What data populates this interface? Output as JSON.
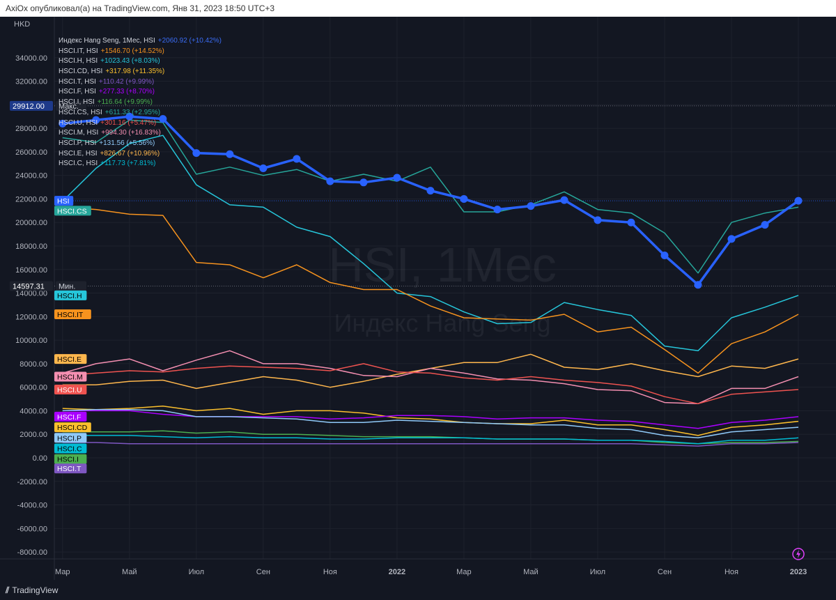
{
  "header": {
    "publisher_line": "AxiOx опубликовал(а) на TradingView.com, Янв 31, 2023 18:50 UTC+3"
  },
  "chart": {
    "currency": "HKD",
    "watermark_symbol": "HSI, 1Мес",
    "watermark_name": "Индекс Hang Seng",
    "max_label": "Макс.",
    "min_label": "Мин.",
    "max_value_text": "29912.00",
    "min_value_text": "14597.31",
    "footer_brand": "TradingView",
    "legend": [
      {
        "name": "Индекс Hang Seng, 1Мес, HSI",
        "change": "+2060.92 (+10.42%)",
        "color": "#3a6cf4"
      },
      {
        "name": "HSCI.IT, HSI",
        "change": "+1546.70 (+14.52%)",
        "color": "#f7931e"
      },
      {
        "name": "HSCI.H, HSI",
        "change": "+1023.43 (+8.03%)",
        "color": "#26c6da"
      },
      {
        "name": "HSCI.CD, HSI",
        "change": "+317.98 (+11.35%)",
        "color": "#fbc02d"
      },
      {
        "name": "HSCI.T, HSI",
        "change": "+110.42 (+9.99%)",
        "color": "#7e57c2"
      },
      {
        "name": "HSCI.F, HSI",
        "change": "+277.33 (+8.70%)",
        "color": "#aa00ff"
      },
      {
        "name": "HSCI.I, HSI",
        "change": "+116.64 (+9.99%)",
        "color": "#4caf50"
      },
      {
        "name": "HSCI.CS, HSI",
        "change": "+611.33 (+2.95%)",
        "color": "#26a69a"
      },
      {
        "name": "HSCI.U, HSI",
        "change": "+301.16 (+5.47%)",
        "color": "#ef5350"
      },
      {
        "name": "HSCI.M, HSI",
        "change": "+994.30 (+16.83%)",
        "color": "#f48fb1"
      },
      {
        "name": "HSCI.P, HSI",
        "change": "+131.56 (+5.56%)",
        "color": "#90caf9"
      },
      {
        "name": "HSCI.E, HSI",
        "change": "+826.67 (+10.96%)",
        "color": "#ffb74d"
      },
      {
        "name": "HSCI.C, HSI",
        "change": "+117.73 (+7.81%)",
        "color": "#00bcd4"
      }
    ]
  },
  "chart_data": {
    "type": "line",
    "title": "Индекс Hang Seng, 1Мес, HSI",
    "ylabel": "HKD",
    "ylim": [
      -9000,
      36000
    ],
    "yticks": [
      -8000,
      -6000,
      -4000,
      -2000,
      0,
      2000,
      4000,
      6000,
      8000,
      10000,
      12000,
      14000,
      16000,
      18000,
      20000,
      22000,
      24000,
      26000,
      28000,
      30000,
      32000,
      34000
    ],
    "x_index_range": [
      -0.1,
      22.0
    ],
    "xticks": [
      {
        "i": 0,
        "label": "Мар"
      },
      {
        "i": 2,
        "label": "Май"
      },
      {
        "i": 4,
        "label": "Июл"
      },
      {
        "i": 6,
        "label": "Сен"
      },
      {
        "i": 8,
        "label": "Ноя"
      },
      {
        "i": 10,
        "label": "2022",
        "bold": true
      },
      {
        "i": 12,
        "label": "Мар"
      },
      {
        "i": 14,
        "label": "Май"
      },
      {
        "i": 16,
        "label": "Июл"
      },
      {
        "i": 18,
        "label": "Сен"
      },
      {
        "i": 20,
        "label": "Ноя"
      },
      {
        "i": 22,
        "label": "2023",
        "bold": true
      }
    ],
    "x": [
      "2021-03",
      "2021-04",
      "2021-05",
      "2021-06",
      "2021-07",
      "2021-08",
      "2021-09",
      "2021-10",
      "2021-11",
      "2021-12",
      "2022-01",
      "2022-02",
      "2022-03",
      "2022-04",
      "2022-05",
      "2022-06",
      "2022-07",
      "2022-08",
      "2022-09",
      "2022-10",
      "2022-11",
      "2022-12",
      "2023-01"
    ],
    "hlines": [
      {
        "value": 29912,
        "label": "Макс."
      },
      {
        "value": 14597.31,
        "label": "Мин."
      },
      {
        "value": 21842,
        "label": "HSI"
      }
    ],
    "series": [
      {
        "name": "HSCI.CS",
        "color": "#26a69a",
        "values": [
          27200,
          26800,
          28700,
          28500,
          24100,
          24700,
          24000,
          24500,
          23500,
          24100,
          23500,
          24700,
          20900,
          20900,
          21500,
          22600,
          21100,
          20800,
          19100,
          15700,
          20000,
          20800,
          21300
        ]
      },
      {
        "name": "HSCI.H",
        "color": "#26c6da",
        "values": [
          21800,
          24600,
          26700,
          27400,
          23200,
          21500,
          21300,
          19600,
          18800,
          16500,
          14000,
          13700,
          12400,
          11400,
          11500,
          13200,
          12600,
          12100,
          9500,
          9100,
          11900,
          12800,
          13800
        ]
      },
      {
        "name": "HSCI.IT",
        "color": "#f7931e",
        "values": [
          21300,
          21100,
          20700,
          20600,
          16600,
          16400,
          15300,
          16400,
          14900,
          14300,
          14300,
          12900,
          11900,
          11800,
          11700,
          12200,
          10700,
          11100,
          9200,
          7200,
          9700,
          10700,
          12200
        ]
      },
      {
        "name": "HSCI.E",
        "color": "#ffb74d",
        "values": [
          6200,
          6200,
          6500,
          6600,
          5900,
          6400,
          6900,
          6600,
          6000,
          6500,
          7100,
          7600,
          8100,
          8100,
          8800,
          7700,
          7500,
          8000,
          7400,
          6900,
          7800,
          7600,
          8400
        ]
      },
      {
        "name": "HSCI.M",
        "color": "#f48fb1",
        "values": [
          7200,
          8000,
          8400,
          7400,
          8300,
          9100,
          8000,
          8000,
          7600,
          7000,
          6900,
          7600,
          7200,
          6700,
          6600,
          6300,
          5800,
          5700,
          4700,
          4600,
          5900,
          5900,
          6900
        ]
      },
      {
        "name": "HSCI.U",
        "color": "#ef5350",
        "values": [
          7000,
          7200,
          7400,
          7300,
          7600,
          7800,
          7700,
          7600,
          7400,
          8000,
          7300,
          7200,
          6800,
          6600,
          6900,
          6600,
          6400,
          6100,
          5200,
          4600,
          5400,
          5600,
          5800
        ]
      },
      {
        "name": "HSCI.CD",
        "color": "#fbc02d",
        "values": [
          4200,
          4100,
          4200,
          4400,
          4000,
          4200,
          3700,
          4000,
          4000,
          3800,
          3400,
          3300,
          3000,
          2900,
          2900,
          3200,
          2800,
          2800,
          2400,
          1900,
          2600,
          2800,
          3100
        ]
      },
      {
        "name": "HSCI.F",
        "color": "#aa00ff",
        "values": [
          4000,
          4000,
          4000,
          3700,
          3500,
          3500,
          3500,
          3500,
          3300,
          3400,
          3600,
          3600,
          3500,
          3300,
          3400,
          3400,
          3200,
          3100,
          2800,
          2500,
          3000,
          3200,
          3500
        ]
      },
      {
        "name": "HSCI.P",
        "color": "#90caf9",
        "values": [
          4000,
          4100,
          4100,
          4000,
          3500,
          3500,
          3400,
          3300,
          3000,
          3000,
          3200,
          3100,
          3000,
          2900,
          2800,
          2800,
          2500,
          2400,
          1900,
          1700,
          2200,
          2400,
          2600
        ]
      },
      {
        "name": "HSCI.I",
        "color": "#4caf50",
        "values": [
          2200,
          2200,
          2200,
          2300,
          2100,
          2200,
          2000,
          2000,
          1900,
          1800,
          1800,
          1800,
          1700,
          1600,
          1600,
          1600,
          1500,
          1500,
          1300,
          1200,
          1300,
          1300,
          1400
        ]
      },
      {
        "name": "HSCI.C",
        "color": "#00bcd4",
        "values": [
          1900,
          1900,
          1900,
          1800,
          1700,
          1800,
          1700,
          1700,
          1600,
          1600,
          1700,
          1700,
          1700,
          1600,
          1600,
          1600,
          1500,
          1500,
          1400,
          1200,
          1500,
          1500,
          1700
        ]
      },
      {
        "name": "HSCI.T",
        "color": "#7e57c2",
        "values": [
          1300,
          1300,
          1200,
          1200,
          1200,
          1200,
          1200,
          1200,
          1200,
          1200,
          1200,
          1200,
          1200,
          1200,
          1200,
          1200,
          1200,
          1200,
          1100,
          1000,
          1200,
          1200,
          1300
        ]
      },
      {
        "name": "HSI",
        "color": "#2962ff",
        "markers": true,
        "values": [
          28400,
          28700,
          29000,
          28800,
          25900,
          25800,
          24600,
          25400,
          23500,
          23400,
          23800,
          22700,
          22000,
          21100,
          21400,
          21900,
          20200,
          20000,
          17200,
          14700,
          18600,
          19800,
          21842
        ]
      }
    ],
    "tags": [
      {
        "name": "HSI",
        "value": 21842,
        "color": "#2962ff",
        "text_color": "#ffffff"
      },
      {
        "name": "HSCI.CS",
        "value": 21000,
        "color": "#26a69a",
        "text_color": "#ffffff"
      },
      {
        "name": "HSCI.H",
        "value": 13800,
        "color": "#26c6da",
        "text_color": "#000000"
      },
      {
        "name": "HSCI.IT",
        "value": 12200,
        "color": "#f7931e",
        "text_color": "#000000"
      },
      {
        "name": "HSCI.E",
        "value": 8400,
        "color": "#ffb74d",
        "text_color": "#000000"
      },
      {
        "name": "HSCI.M",
        "value": 6900,
        "color": "#f48fb1",
        "text_color": "#000000"
      },
      {
        "name": "HSCI.U",
        "value": 5800,
        "color": "#ef5350",
        "text_color": "#ffffff"
      },
      {
        "name": "HSCI.F",
        "value": 3500,
        "color": "#aa00ff",
        "text_color": "#ffffff"
      },
      {
        "name": "HSCI.CD",
        "value": 2600,
        "color": "#fbc02d",
        "text_color": "#000000"
      },
      {
        "name": "HSCI.P",
        "value": 1700,
        "color": "#90caf9",
        "text_color": "#000000"
      },
      {
        "name": "HSCI.C",
        "value": 800,
        "color": "#00bcd4",
        "text_color": "#000000"
      },
      {
        "name": "HSCI.I",
        "value": -100,
        "color": "#4caf50",
        "text_color": "#000000"
      },
      {
        "name": "HSCI.T",
        "value": -900,
        "color": "#7e57c2",
        "text_color": "#ffffff"
      }
    ]
  }
}
